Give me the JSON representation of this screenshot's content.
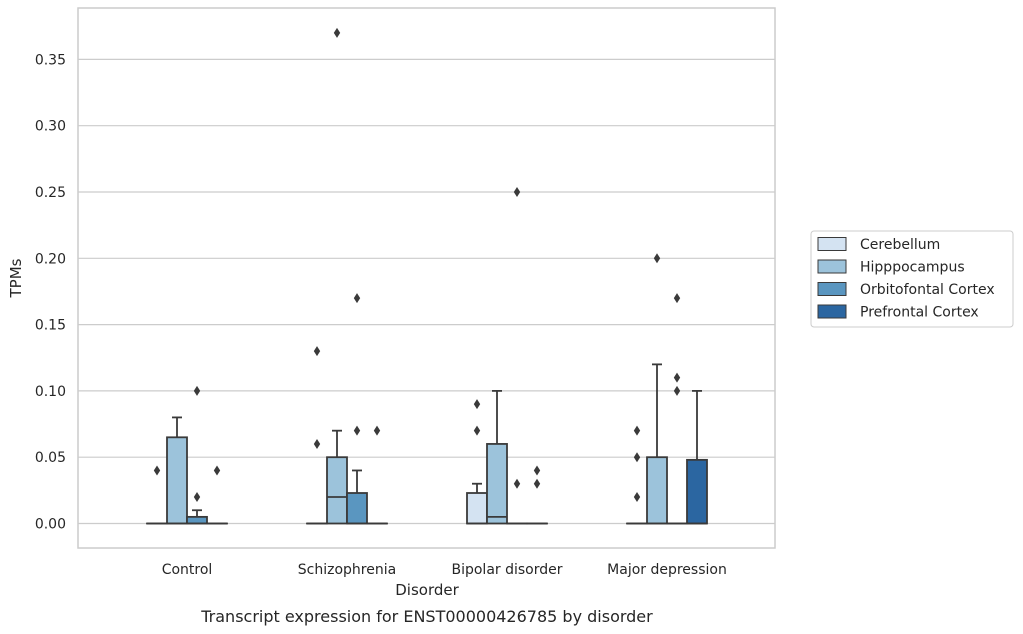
{
  "chart_data": {
    "type": "box",
    "title": "",
    "caption": "Transcript expression for ENST00000426785 by disorder",
    "xlabel": "Disorder",
    "ylabel": "TPMs",
    "ylim": [
      -0.018,
      0.388
    ],
    "yticks": [
      0.0,
      0.05,
      0.1,
      0.15,
      0.2,
      0.25,
      0.3,
      0.35
    ],
    "ytick_labels": [
      "0.00",
      "0.05",
      "0.10",
      "0.15",
      "0.20",
      "0.25",
      "0.30",
      "0.35"
    ],
    "grid": "horizontal",
    "legend_position": "right",
    "categories": [
      "Control",
      "Schizophrenia",
      "Bipolar disorder",
      "Major depression"
    ],
    "series": [
      {
        "name": "Cerebellum",
        "color": "#d4e3f2",
        "boxes": [
          {
            "min": 0,
            "q1": 0,
            "median": 0,
            "q3": 0,
            "max": 0,
            "outliers": [
              0.04
            ]
          },
          {
            "min": 0,
            "q1": 0,
            "median": 0,
            "q3": 0,
            "max": 0,
            "outliers": [
              0.06,
              0.13
            ]
          },
          {
            "min": 0,
            "q1": 0,
            "median": 0,
            "q3": 0.023,
            "max": 0.03,
            "outliers": [
              0.07,
              0.09
            ]
          },
          {
            "min": 0,
            "q1": 0,
            "median": 0,
            "q3": 0,
            "max": 0,
            "outliers": [
              0.02,
              0.05,
              0.07
            ]
          }
        ]
      },
      {
        "name": "Hipppocampus",
        "color": "#9cc3db",
        "boxes": [
          {
            "min": 0,
            "q1": 0,
            "median": 0,
            "q3": 0.065,
            "max": 0.08,
            "outliers": []
          },
          {
            "min": 0,
            "q1": 0,
            "median": 0.02,
            "q3": 0.05,
            "max": 0.07,
            "outliers": [
              0.37
            ]
          },
          {
            "min": 0,
            "q1": 0,
            "median": 0.005,
            "q3": 0.06,
            "max": 0.1,
            "outliers": []
          },
          {
            "min": 0,
            "q1": 0,
            "median": 0,
            "q3": 0.05,
            "max": 0.12,
            "outliers": [
              0.2
            ]
          }
        ]
      },
      {
        "name": "Orbitofontal Cortex",
        "color": "#5a96c0",
        "boxes": [
          {
            "min": 0,
            "q1": 0,
            "median": 0,
            "q3": 0.005,
            "max": 0.01,
            "outliers": [
              0.02,
              0.1
            ]
          },
          {
            "min": 0,
            "q1": 0,
            "median": 0,
            "q3": 0.023,
            "max": 0.04,
            "outliers": [
              0.07,
              0.17
            ]
          },
          {
            "min": 0,
            "q1": 0,
            "median": 0,
            "q3": 0,
            "max": 0,
            "outliers": [
              0.03,
              0.25
            ]
          },
          {
            "min": 0,
            "q1": 0,
            "median": 0,
            "q3": 0,
            "max": 0,
            "outliers": [
              0.1,
              0.11,
              0.17
            ]
          }
        ]
      },
      {
        "name": "Prefrontal Cortex",
        "color": "#2b66a1",
        "boxes": [
          {
            "min": 0,
            "q1": 0,
            "median": 0,
            "q3": 0,
            "max": 0,
            "outliers": [
              0.04
            ]
          },
          {
            "min": 0,
            "q1": 0,
            "median": 0,
            "q3": 0,
            "max": 0,
            "outliers": [
              0.07
            ]
          },
          {
            "min": 0,
            "q1": 0,
            "median": 0,
            "q3": 0,
            "max": 0,
            "outliers": [
              0.03,
              0.04
            ]
          },
          {
            "min": 0,
            "q1": 0,
            "median": 0,
            "q3": 0.048,
            "max": 0.1,
            "outliers": []
          }
        ]
      }
    ]
  }
}
